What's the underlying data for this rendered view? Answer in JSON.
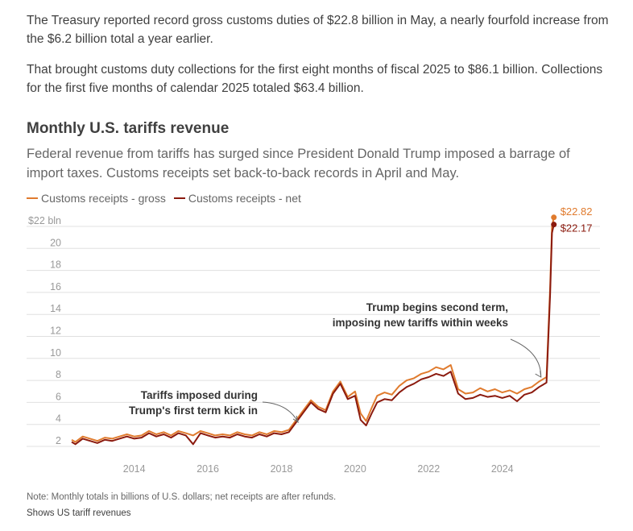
{
  "article": {
    "paragraph1": "The Treasury reported record gross customs duties of $22.8 billion in May, a nearly fourfold increase from the $6.2 billion total a year earlier.",
    "paragraph2": "That brought customs duty collections for the first eight months of fiscal 2025 to $86.1 billion. Collections for the first five months of calendar 2025 totaled $63.4 billion."
  },
  "colors": {
    "gross": "#e07b2e",
    "net": "#8b1a0e",
    "grid": "#e0e0e0",
    "axis_text": "#999999"
  },
  "chart_data": {
    "type": "line",
    "title": "Monthly U.S. tariffs revenue",
    "subtitle": "Federal revenue from tariffs has surged since President Donald Trump imposed a barrage of import taxes. Customs receipts set back-to-back records in April and May.",
    "xlabel": "",
    "ylabel": "",
    "x_range": [
      2012.3,
      2025.45
    ],
    "ylim": [
      2,
      22
    ],
    "y_ticks": [
      2,
      4,
      6,
      8,
      10,
      12,
      14,
      16,
      18,
      20,
      22
    ],
    "y_tick_labels": [
      "2",
      "4",
      "6",
      "8",
      "10",
      "12",
      "14",
      "16",
      "18",
      "20",
      "$22 bln"
    ],
    "x_ticks": [
      2014,
      2016,
      2018,
      2020,
      2022,
      2024
    ],
    "x_tick_labels": [
      "2014",
      "2016",
      "2018",
      "2020",
      "2022",
      "2024"
    ],
    "grid": true,
    "legend_position": "top-left",
    "series": [
      {
        "name": "Customs receipts - gross",
        "key": "gross",
        "x": [
          2012.3,
          2012.4,
          2012.6,
          2012.8,
          2013.0,
          2013.2,
          2013.4,
          2013.6,
          2013.8,
          2014.0,
          2014.2,
          2014.4,
          2014.6,
          2014.8,
          2015.0,
          2015.2,
          2015.4,
          2015.6,
          2015.8,
          2016.0,
          2016.2,
          2016.4,
          2016.6,
          2016.8,
          2017.0,
          2017.2,
          2017.4,
          2017.6,
          2017.8,
          2018.0,
          2018.2,
          2018.4,
          2018.6,
          2018.8,
          2019.0,
          2019.2,
          2019.4,
          2019.6,
          2019.8,
          2020.0,
          2020.15,
          2020.3,
          2020.45,
          2020.6,
          2020.8,
          2021.0,
          2021.2,
          2021.4,
          2021.6,
          2021.8,
          2022.0,
          2022.2,
          2022.4,
          2022.6,
          2022.8,
          2023.0,
          2023.2,
          2023.4,
          2023.6,
          2023.8,
          2024.0,
          2024.2,
          2024.4,
          2024.6,
          2024.8,
          2025.0,
          2025.1,
          2025.2,
          2025.3,
          2025.35,
          2025.4
        ],
        "values": [
          2.6,
          2.4,
          2.9,
          2.7,
          2.5,
          2.8,
          2.7,
          2.9,
          3.1,
          2.9,
          3.0,
          3.4,
          3.1,
          3.3,
          3.0,
          3.4,
          3.2,
          3.0,
          3.4,
          3.2,
          3.0,
          3.1,
          3.0,
          3.3,
          3.1,
          3.0,
          3.3,
          3.1,
          3.4,
          3.3,
          3.5,
          4.4,
          5.3,
          6.2,
          5.6,
          5.3,
          7.0,
          7.9,
          6.5,
          7.0,
          5.0,
          4.3,
          5.5,
          6.6,
          6.9,
          6.7,
          7.5,
          8.0,
          8.2,
          8.6,
          8.8,
          9.2,
          9.0,
          9.4,
          7.2,
          6.8,
          6.9,
          7.3,
          7.0,
          7.2,
          6.9,
          7.1,
          6.8,
          7.2,
          7.4,
          7.9,
          8.1,
          8.3,
          16.5,
          22.0,
          22.82
        ]
      },
      {
        "name": "Customs receipts - net",
        "key": "net",
        "x": [
          2012.3,
          2012.4,
          2012.6,
          2012.8,
          2013.0,
          2013.2,
          2013.4,
          2013.6,
          2013.8,
          2014.0,
          2014.2,
          2014.4,
          2014.6,
          2014.8,
          2015.0,
          2015.2,
          2015.4,
          2015.6,
          2015.8,
          2016.0,
          2016.2,
          2016.4,
          2016.6,
          2016.8,
          2017.0,
          2017.2,
          2017.4,
          2017.6,
          2017.8,
          2018.0,
          2018.2,
          2018.4,
          2018.6,
          2018.8,
          2019.0,
          2019.2,
          2019.4,
          2019.6,
          2019.8,
          2020.0,
          2020.15,
          2020.3,
          2020.45,
          2020.6,
          2020.8,
          2021.0,
          2021.2,
          2021.4,
          2021.6,
          2021.8,
          2022.0,
          2022.2,
          2022.4,
          2022.6,
          2022.8,
          2023.0,
          2023.2,
          2023.4,
          2023.6,
          2023.8,
          2024.0,
          2024.2,
          2024.4,
          2024.6,
          2024.8,
          2025.0,
          2025.1,
          2025.2,
          2025.3,
          2025.35,
          2025.4
        ],
        "values": [
          2.4,
          2.2,
          2.7,
          2.5,
          2.3,
          2.6,
          2.5,
          2.7,
          2.9,
          2.7,
          2.8,
          3.2,
          2.9,
          3.1,
          2.8,
          3.2,
          3.0,
          2.2,
          3.2,
          3.0,
          2.8,
          2.9,
          2.8,
          3.1,
          2.9,
          2.8,
          3.1,
          2.9,
          3.2,
          3.1,
          3.3,
          4.2,
          5.1,
          6.0,
          5.4,
          5.1,
          6.8,
          7.7,
          6.3,
          6.6,
          4.4,
          3.9,
          5.0,
          6.0,
          6.3,
          6.2,
          6.9,
          7.4,
          7.7,
          8.1,
          8.3,
          8.6,
          8.4,
          8.8,
          6.8,
          6.3,
          6.4,
          6.7,
          6.5,
          6.6,
          6.4,
          6.6,
          6.1,
          6.7,
          6.9,
          7.4,
          7.6,
          7.8,
          15.8,
          21.4,
          22.17
        ]
      }
    ],
    "end_labels": [
      {
        "series": "gross",
        "text": "$22.82",
        "value": 22.82
      },
      {
        "series": "net",
        "text": "$22.17",
        "value": 22.17
      }
    ],
    "annotations": [
      {
        "lines": [
          "Tariffs imposed during",
          "Trump's first term kick in"
        ],
        "x": 2018.45,
        "y": 4.2
      },
      {
        "lines": [
          "Trump begins second term,",
          "imposing new tariffs within weeks"
        ],
        "x": 2025.05,
        "y": 8.3
      }
    ],
    "note": "Note: Monthly totals in billions of U.S. dollars; net receipts are after refunds.",
    "caption": "Shows US tariff revenues"
  }
}
